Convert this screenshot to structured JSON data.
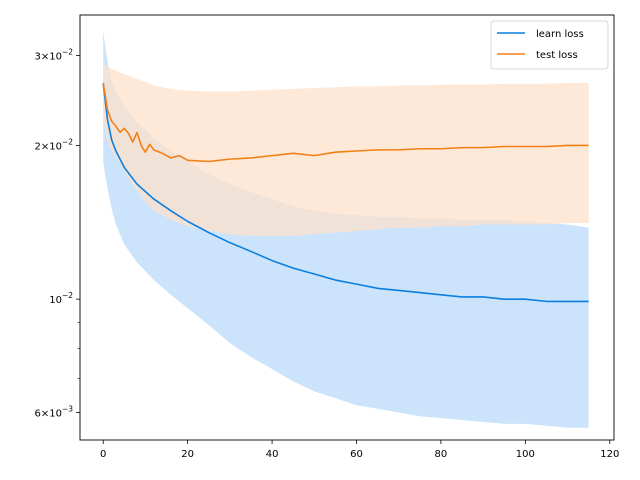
{
  "chart_data": {
    "type": "line",
    "yscale": "log",
    "xlim": [
      -5.5,
      121
    ],
    "ylim": [
      0.0053,
      0.036
    ],
    "x_ticks": [
      0,
      20,
      40,
      60,
      80,
      100,
      120
    ],
    "x_tick_labels": [
      "0",
      "20",
      "40",
      "60",
      "80",
      "100",
      "120"
    ],
    "y_major_ticks": [
      0.006,
      0.01,
      0.02,
      0.03
    ],
    "y_tick_labels": [
      {
        "base": "6",
        "exp": "−3"
      },
      {
        "base": "",
        "exp": "−2"
      },
      {
        "base": "2",
        "exp": "−2"
      },
      {
        "base": "3",
        "exp": "−2"
      }
    ],
    "y_minor_ticks": [
      0.007,
      0.008,
      0.009
    ],
    "legend": {
      "position": "top-right",
      "entries": [
        "learn loss",
        "test loss"
      ]
    },
    "colors": {
      "learn": "#0a7fe0",
      "learn_fill": "#cce4fb",
      "test": "#f28014",
      "test_fill": "#fde2cc"
    },
    "series": [
      {
        "name": "learn loss",
        "color": "#0a7fe0",
        "x": [
          0,
          1,
          2,
          3,
          5,
          8,
          12,
          16,
          20,
          25,
          30,
          35,
          40,
          45,
          50,
          55,
          60,
          65,
          70,
          75,
          80,
          85,
          90,
          95,
          100,
          105,
          110,
          115
        ],
        "y": [
          0.0265,
          0.0225,
          0.0205,
          0.0195,
          0.0181,
          0.0168,
          0.0157,
          0.0149,
          0.0142,
          0.0135,
          0.0129,
          0.0124,
          0.0119,
          0.0115,
          0.0112,
          0.0109,
          0.0107,
          0.0105,
          0.0104,
          0.0103,
          0.0102,
          0.0101,
          0.0101,
          0.01,
          0.01,
          0.0099,
          0.0099,
          0.0099
        ],
        "band_upper": [
          0.0335,
          0.0292,
          0.0268,
          0.0255,
          0.0238,
          0.0222,
          0.0207,
          0.0195,
          0.0186,
          0.0176,
          0.0168,
          0.0162,
          0.0157,
          0.0152,
          0.0149,
          0.0147,
          0.0146,
          0.0145,
          0.0145,
          0.0144,
          0.0144,
          0.0143,
          0.0143,
          0.0143,
          0.0142,
          0.0141,
          0.014,
          0.0138
        ],
        "band_lower": [
          0.0185,
          0.0165,
          0.015,
          0.014,
          0.0128,
          0.0118,
          0.0109,
          0.0102,
          0.0096,
          0.0089,
          0.0082,
          0.0077,
          0.0073,
          0.0069,
          0.0066,
          0.0064,
          0.0062,
          0.0061,
          0.006,
          0.0059,
          0.00585,
          0.0058,
          0.00575,
          0.0057,
          0.0057,
          0.00565,
          0.0056,
          0.0056
        ]
      },
      {
        "name": "test loss",
        "color": "#f28014",
        "x": [
          0,
          1,
          2,
          3,
          4,
          5,
          6,
          7,
          8,
          9,
          10,
          11,
          12,
          14,
          16,
          18,
          20,
          25,
          30,
          35,
          40,
          45,
          50,
          55,
          60,
          65,
          70,
          75,
          80,
          85,
          90,
          95,
          100,
          105,
          110,
          115
        ],
        "y": [
          0.0265,
          0.0235,
          0.0223,
          0.0218,
          0.0212,
          0.0216,
          0.0211,
          0.0203,
          0.0212,
          0.02,
          0.0194,
          0.0201,
          0.0196,
          0.0193,
          0.0189,
          0.0191,
          0.0187,
          0.0186,
          0.0188,
          0.0189,
          0.0191,
          0.0193,
          0.0191,
          0.0194,
          0.0195,
          0.0196,
          0.0196,
          0.0197,
          0.0197,
          0.0198,
          0.0198,
          0.0199,
          0.0199,
          0.0199,
          0.02,
          0.02
        ],
        "band_upper": [
          0.0288,
          0.0286,
          0.0282,
          0.028,
          0.0278,
          0.0276,
          0.0274,
          0.0272,
          0.027,
          0.0268,
          0.0266,
          0.0264,
          0.0262,
          0.026,
          0.0258,
          0.0257,
          0.0256,
          0.0255,
          0.0255,
          0.0256,
          0.0257,
          0.0258,
          0.0259,
          0.026,
          0.0261,
          0.0261,
          0.0262,
          0.0262,
          0.0263,
          0.0263,
          0.0263,
          0.0264,
          0.0264,
          0.0264,
          0.0265,
          0.0265
        ],
        "band_lower": [
          0.0225,
          0.0205,
          0.0196,
          0.019,
          0.0184,
          0.0178,
          0.0173,
          0.0168,
          0.0163,
          0.0159,
          0.0155,
          0.0152,
          0.0149,
          0.0146,
          0.0143,
          0.0141,
          0.0139,
          0.0136,
          0.0134,
          0.0133,
          0.0133,
          0.0133,
          0.0134,
          0.0135,
          0.0136,
          0.0137,
          0.0138,
          0.0138,
          0.0139,
          0.0139,
          0.014,
          0.014,
          0.014,
          0.014,
          0.0141,
          0.0141
        ]
      }
    ]
  }
}
